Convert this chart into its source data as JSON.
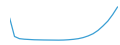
{
  "x": [
    2000,
    2001,
    2002,
    2003,
    2004,
    2005,
    2006,
    2007,
    2008,
    2009,
    2010,
    2011,
    2012,
    2013,
    2014,
    2015,
    2016,
    2017,
    2018,
    2019,
    2020,
    2021,
    2022
  ],
  "y": [
    5200,
    1800,
    1400,
    1300,
    1250,
    1200,
    1180,
    1160,
    1150,
    1140,
    1130,
    1150,
    1200,
    1280,
    1400,
    1600,
    1900,
    2300,
    2900,
    3700,
    4600,
    5800,
    7200
  ],
  "line_color": "#3a9fd4",
  "line_width": 0.9,
  "background_color": "#ffffff",
  "ylim": [
    900,
    7800
  ],
  "xlim": [
    2000,
    2022
  ]
}
